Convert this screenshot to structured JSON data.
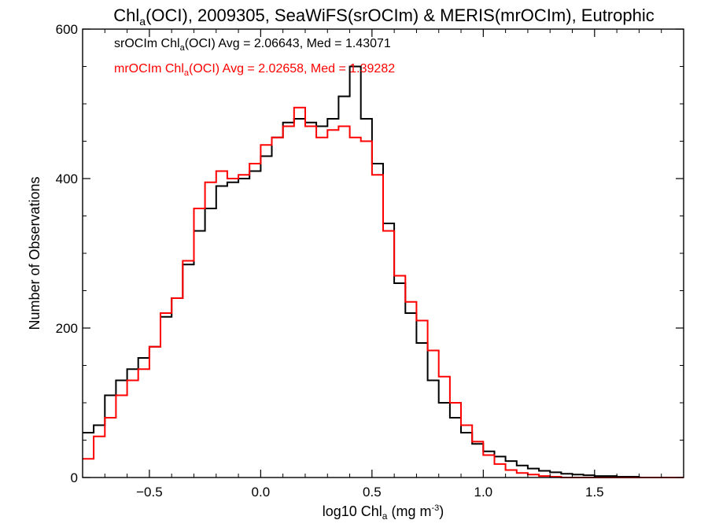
{
  "chart_data": {
    "type": "line",
    "step": true,
    "title_parts": [
      "Chl",
      "a",
      "(OCI), 2009305, SeaWiFS(srOCIm) & MERIS(mrOCIm), Eutrophic"
    ],
    "xlabel_parts": [
      "log10 Chl",
      "a",
      " (mg m",
      "-3",
      ")"
    ],
    "ylabel": "Number of Observations",
    "xlim": [
      -0.8,
      1.9
    ],
    "ylim": [
      0,
      600
    ],
    "xticks": [
      -0.5,
      0.0,
      0.5,
      1.0,
      1.5
    ],
    "xtick_labels": [
      "−0.5",
      "0.0",
      "0.5",
      "1.0",
      "1.5"
    ],
    "yticks": [
      0,
      200,
      400,
      600
    ],
    "ytick_labels": [
      "0",
      "200",
      "400",
      "600"
    ],
    "grid": false,
    "annotations": [
      {
        "parts": [
          "srOCIm Chl",
          "a",
          "(OCI) Avg = 2.06643, Med = 1.43071"
        ],
        "color": "#000000"
      },
      {
        "parts": [
          "mrOCIm Chl",
          "a",
          "(OCI) Avg = 2.02658, Med = 1.39282"
        ],
        "color": "#ff0000"
      }
    ],
    "series": [
      {
        "color": "#000000",
        "points": [
          [
            -0.8,
            60
          ],
          [
            -0.75,
            70
          ],
          [
            -0.7,
            110
          ],
          [
            -0.65,
            130
          ],
          [
            -0.6,
            145
          ],
          [
            -0.55,
            160
          ],
          [
            -0.5,
            175
          ],
          [
            -0.45,
            215
          ],
          [
            -0.4,
            240
          ],
          [
            -0.35,
            285
          ],
          [
            -0.3,
            330
          ],
          [
            -0.25,
            360
          ],
          [
            -0.2,
            390
          ],
          [
            -0.15,
            395
          ],
          [
            -0.1,
            400
          ],
          [
            -0.05,
            410
          ],
          [
            0.0,
            430
          ],
          [
            0.05,
            455
          ],
          [
            0.1,
            475
          ],
          [
            0.15,
            480
          ],
          [
            0.2,
            475
          ],
          [
            0.25,
            470
          ],
          [
            0.3,
            480
          ],
          [
            0.35,
            510
          ],
          [
            0.4,
            550
          ],
          [
            0.45,
            480
          ],
          [
            0.5,
            420
          ],
          [
            0.55,
            340
          ],
          [
            0.6,
            260
          ],
          [
            0.65,
            220
          ],
          [
            0.7,
            180
          ],
          [
            0.75,
            130
          ],
          [
            0.8,
            100
          ],
          [
            0.85,
            80
          ],
          [
            0.9,
            60
          ],
          [
            0.95,
            45
          ],
          [
            1.0,
            35
          ],
          [
            1.05,
            28
          ],
          [
            1.1,
            22
          ],
          [
            1.15,
            16
          ],
          [
            1.2,
            12
          ],
          [
            1.25,
            9
          ],
          [
            1.3,
            7
          ],
          [
            1.35,
            5
          ],
          [
            1.4,
            4
          ],
          [
            1.45,
            3
          ],
          [
            1.5,
            2
          ],
          [
            1.55,
            2
          ],
          [
            1.6,
            1
          ],
          [
            1.65,
            1
          ],
          [
            1.7,
            0
          ],
          [
            1.9,
            0
          ]
        ]
      },
      {
        "color": "#ff0000",
        "points": [
          [
            -0.8,
            25
          ],
          [
            -0.75,
            55
          ],
          [
            -0.7,
            80
          ],
          [
            -0.65,
            110
          ],
          [
            -0.6,
            130
          ],
          [
            -0.55,
            145
          ],
          [
            -0.5,
            175
          ],
          [
            -0.45,
            220
          ],
          [
            -0.4,
            240
          ],
          [
            -0.35,
            290
          ],
          [
            -0.3,
            360
          ],
          [
            -0.25,
            395
          ],
          [
            -0.2,
            410
          ],
          [
            -0.15,
            400
          ],
          [
            -0.1,
            405
          ],
          [
            -0.05,
            420
          ],
          [
            0.0,
            445
          ],
          [
            0.05,
            455
          ],
          [
            0.1,
            470
          ],
          [
            0.15,
            495
          ],
          [
            0.2,
            470
          ],
          [
            0.25,
            455
          ],
          [
            0.3,
            465
          ],
          [
            0.35,
            470
          ],
          [
            0.4,
            455
          ],
          [
            0.45,
            450
          ],
          [
            0.5,
            405
          ],
          [
            0.55,
            330
          ],
          [
            0.6,
            270
          ],
          [
            0.65,
            235
          ],
          [
            0.7,
            210
          ],
          [
            0.75,
            170
          ],
          [
            0.8,
            135
          ],
          [
            0.85,
            100
          ],
          [
            0.9,
            70
          ],
          [
            0.95,
            48
          ],
          [
            1.0,
            30
          ],
          [
            1.05,
            18
          ],
          [
            1.1,
            10
          ],
          [
            1.15,
            6
          ],
          [
            1.2,
            4
          ],
          [
            1.25,
            2
          ],
          [
            1.3,
            1
          ],
          [
            1.35,
            0
          ],
          [
            1.9,
            0
          ]
        ]
      }
    ]
  }
}
